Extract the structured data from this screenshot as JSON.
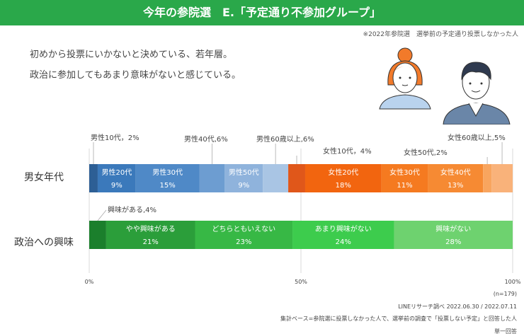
{
  "header": {
    "title": "今年の参院選　E.「予定通り不参加グループ」",
    "note": "※2022年参院選　選挙前の予定通り投票しなかった人"
  },
  "lead": {
    "line1": "初めから投票にいかないと決めている、若年層。",
    "line2": "政治に参加してもあまり意味がないと感じている。"
  },
  "colors": {
    "banner": "#2aa84a",
    "male": [
      "#2d5f95",
      "#3b79bb",
      "#4f89c7",
      "#6d9dd1",
      "#8fb3dc",
      "#a9c5e4"
    ],
    "female": [
      "#e0571a",
      "#f2650f",
      "#f57a20",
      "#f68a33",
      "#f8a55f",
      "#f9b27a"
    ],
    "interest": [
      "#1b7f2c",
      "#2b9e3a",
      "#37b845",
      "#3dcc4d",
      "#6ed26f"
    ]
  },
  "chart_data": [
    {
      "type": "bar",
      "orientation": "horizontal-stacked",
      "category": "男女年代",
      "segments": [
        {
          "name": "男性10代",
          "value": 2,
          "group": "male"
        },
        {
          "name": "男性20代",
          "value": 9,
          "group": "male"
        },
        {
          "name": "男性30代",
          "value": 15,
          "group": "male"
        },
        {
          "name": "男性40代",
          "value": 6,
          "group": "male"
        },
        {
          "name": "男性50代",
          "value": 9,
          "group": "male"
        },
        {
          "name": "男性60歳以上",
          "value": 6,
          "group": "male"
        },
        {
          "name": "女性10代",
          "value": 4,
          "group": "female"
        },
        {
          "name": "女性20代",
          "value": 18,
          "group": "female"
        },
        {
          "name": "女性30代",
          "value": 11,
          "group": "female"
        },
        {
          "name": "女性40代",
          "value": 13,
          "group": "female"
        },
        {
          "name": "女性50代",
          "value": 2,
          "group": "female"
        },
        {
          "name": "女性60歳以上",
          "value": 5,
          "group": "female"
        }
      ],
      "inside_labels": [
        {
          "name": "男性20代",
          "value": "9%"
        },
        {
          "name": "男性30代",
          "value": "15%"
        },
        {
          "name": "男性50代",
          "value": "9%"
        },
        {
          "name": "女性20代",
          "value": "18%"
        },
        {
          "name": "女性30代",
          "value": "11%"
        },
        {
          "name": "女性40代",
          "value": "13%"
        }
      ],
      "callouts": [
        {
          "text": "男性10代，2%"
        },
        {
          "text": "男性40代,6%"
        },
        {
          "text": "男性60歳以上,6%"
        },
        {
          "text": "女性10代，4%"
        },
        {
          "text": "女性50代,2%"
        },
        {
          "text": "女性60歳以上,5%"
        }
      ]
    },
    {
      "type": "bar",
      "orientation": "horizontal-stacked",
      "category": "政治への興味",
      "segments": [
        {
          "name": "興味がある",
          "value": 4
        },
        {
          "name": "やや興味がある",
          "value": 21
        },
        {
          "name": "どちらともいえない",
          "value": 23
        },
        {
          "name": "あまり興味がない",
          "value": 24
        },
        {
          "name": "興味がない",
          "value": 28
        }
      ],
      "inside_labels": [
        {
          "name": "やや興味がある",
          "value": "21%"
        },
        {
          "name": "どちらともいえない",
          "value": "23%"
        },
        {
          "name": "あまり興味がない",
          "value": "24%"
        },
        {
          "name": "興味がない",
          "value": "28%"
        }
      ],
      "callouts": [
        {
          "text": "興味がある,4%"
        }
      ]
    }
  ],
  "axis": {
    "ticks": [
      "0%",
      "50%",
      "100%"
    ],
    "xlim": [
      0,
      100
    ]
  },
  "footer": {
    "n": "(n=179)",
    "source": "LINEリサーチ調べ 2022.06.30 / 2022.07.11",
    "base": "集計ベース=参院選に投票しなかった人で、選挙前の調査で「投票しない予定」と回答した人",
    "answer_type": "単一回答"
  }
}
